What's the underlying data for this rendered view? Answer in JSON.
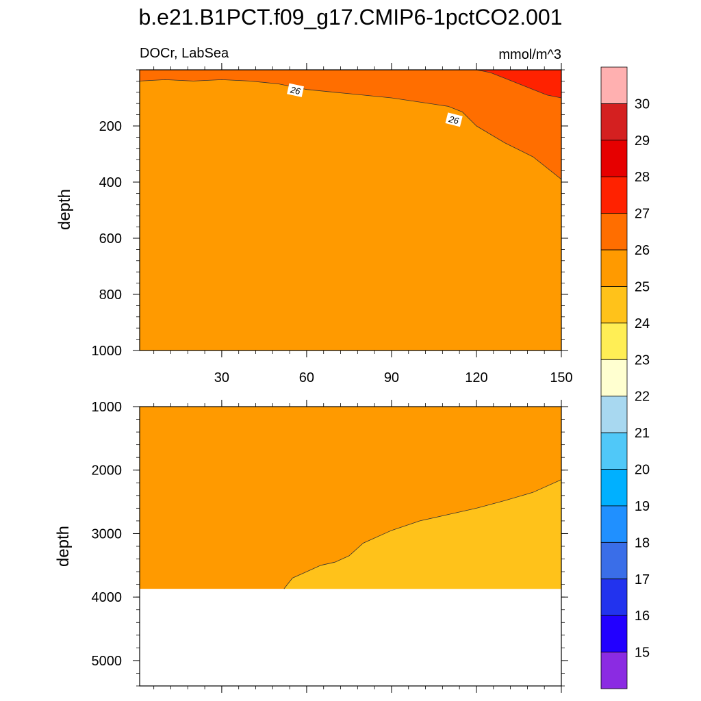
{
  "chart_data": {
    "type": "heatmap",
    "title": "b.e21.B1PCT.f09_g17.CMIP6-1pctCO2.001",
    "left_subtitle": "DOCr, LabSea",
    "right_subtitle": "mmol/m^3",
    "ylabel": "depth",
    "x_range": [
      1,
      150
    ],
    "x_ticks": [
      "30",
      "60",
      "90",
      "120",
      "150"
    ],
    "contour_label": "26",
    "colorbar": {
      "levels": [
        "15",
        "16",
        "17",
        "18",
        "19",
        "20",
        "21",
        "22",
        "23",
        "24",
        "25",
        "26",
        "27",
        "28",
        "29",
        "30"
      ],
      "colors": [
        "#8b2be2",
        "#2200ff",
        "#2233ee",
        "#3a6ee8",
        "#2090ff",
        "#00b0ff",
        "#50c8f8",
        "#a8d8f0",
        "#ffffd0",
        "#ffee55",
        "#ffc21a",
        "#ff9a00",
        "#ff6e00",
        "#ff2200",
        "#e60000",
        "#d42020",
        "#ffb0b0"
      ]
    },
    "panels": [
      {
        "name": "upper",
        "depth_range": [
          0,
          1000
        ],
        "y_ticks": [
          "200",
          "400",
          "600",
          "800",
          "1000"
        ],
        "regions": [
          {
            "range": "25-26",
            "color": "#ff9a00"
          },
          {
            "range": "26-27",
            "color": "#ff6e00",
            "boundary_x": [
              1,
              10,
              20,
              30,
              40,
              50,
              60,
              70,
              80,
              90,
              100,
              110,
              115,
              120,
              130,
              140,
              150
            ],
            "boundary_depth": [
              40,
              35,
              40,
              35,
              40,
              50,
              70,
              80,
              90,
              100,
              115,
              130,
              150,
              200,
              260,
              310,
              390
            ]
          },
          {
            "range": "27-28",
            "color": "#ff2200",
            "boundary_x": [
              120,
              125,
              130,
              135,
              140,
              145,
              150
            ],
            "boundary_depth": [
              0,
              10,
              30,
              50,
              70,
              90,
              100
            ]
          }
        ]
      },
      {
        "name": "lower",
        "depth_range": [
          1000,
          5400
        ],
        "y_ticks": [
          "1000",
          "2000",
          "3000",
          "4000",
          "5000"
        ],
        "bottom_depth": 3870,
        "regions": [
          {
            "range": "25-26",
            "color": "#ff9a00"
          },
          {
            "range": "24-25",
            "color": "#ffc21a",
            "boundary_x": [
              52,
              55,
              60,
              65,
              70,
              75,
              80,
              90,
              100,
              110,
              120,
              130,
              140,
              150
            ],
            "boundary_depth": [
              3870,
              3700,
              3600,
              3500,
              3450,
              3350,
              3150,
              2950,
              2800,
              2700,
              2600,
              2480,
              2350,
              2150
            ]
          }
        ]
      }
    ]
  }
}
